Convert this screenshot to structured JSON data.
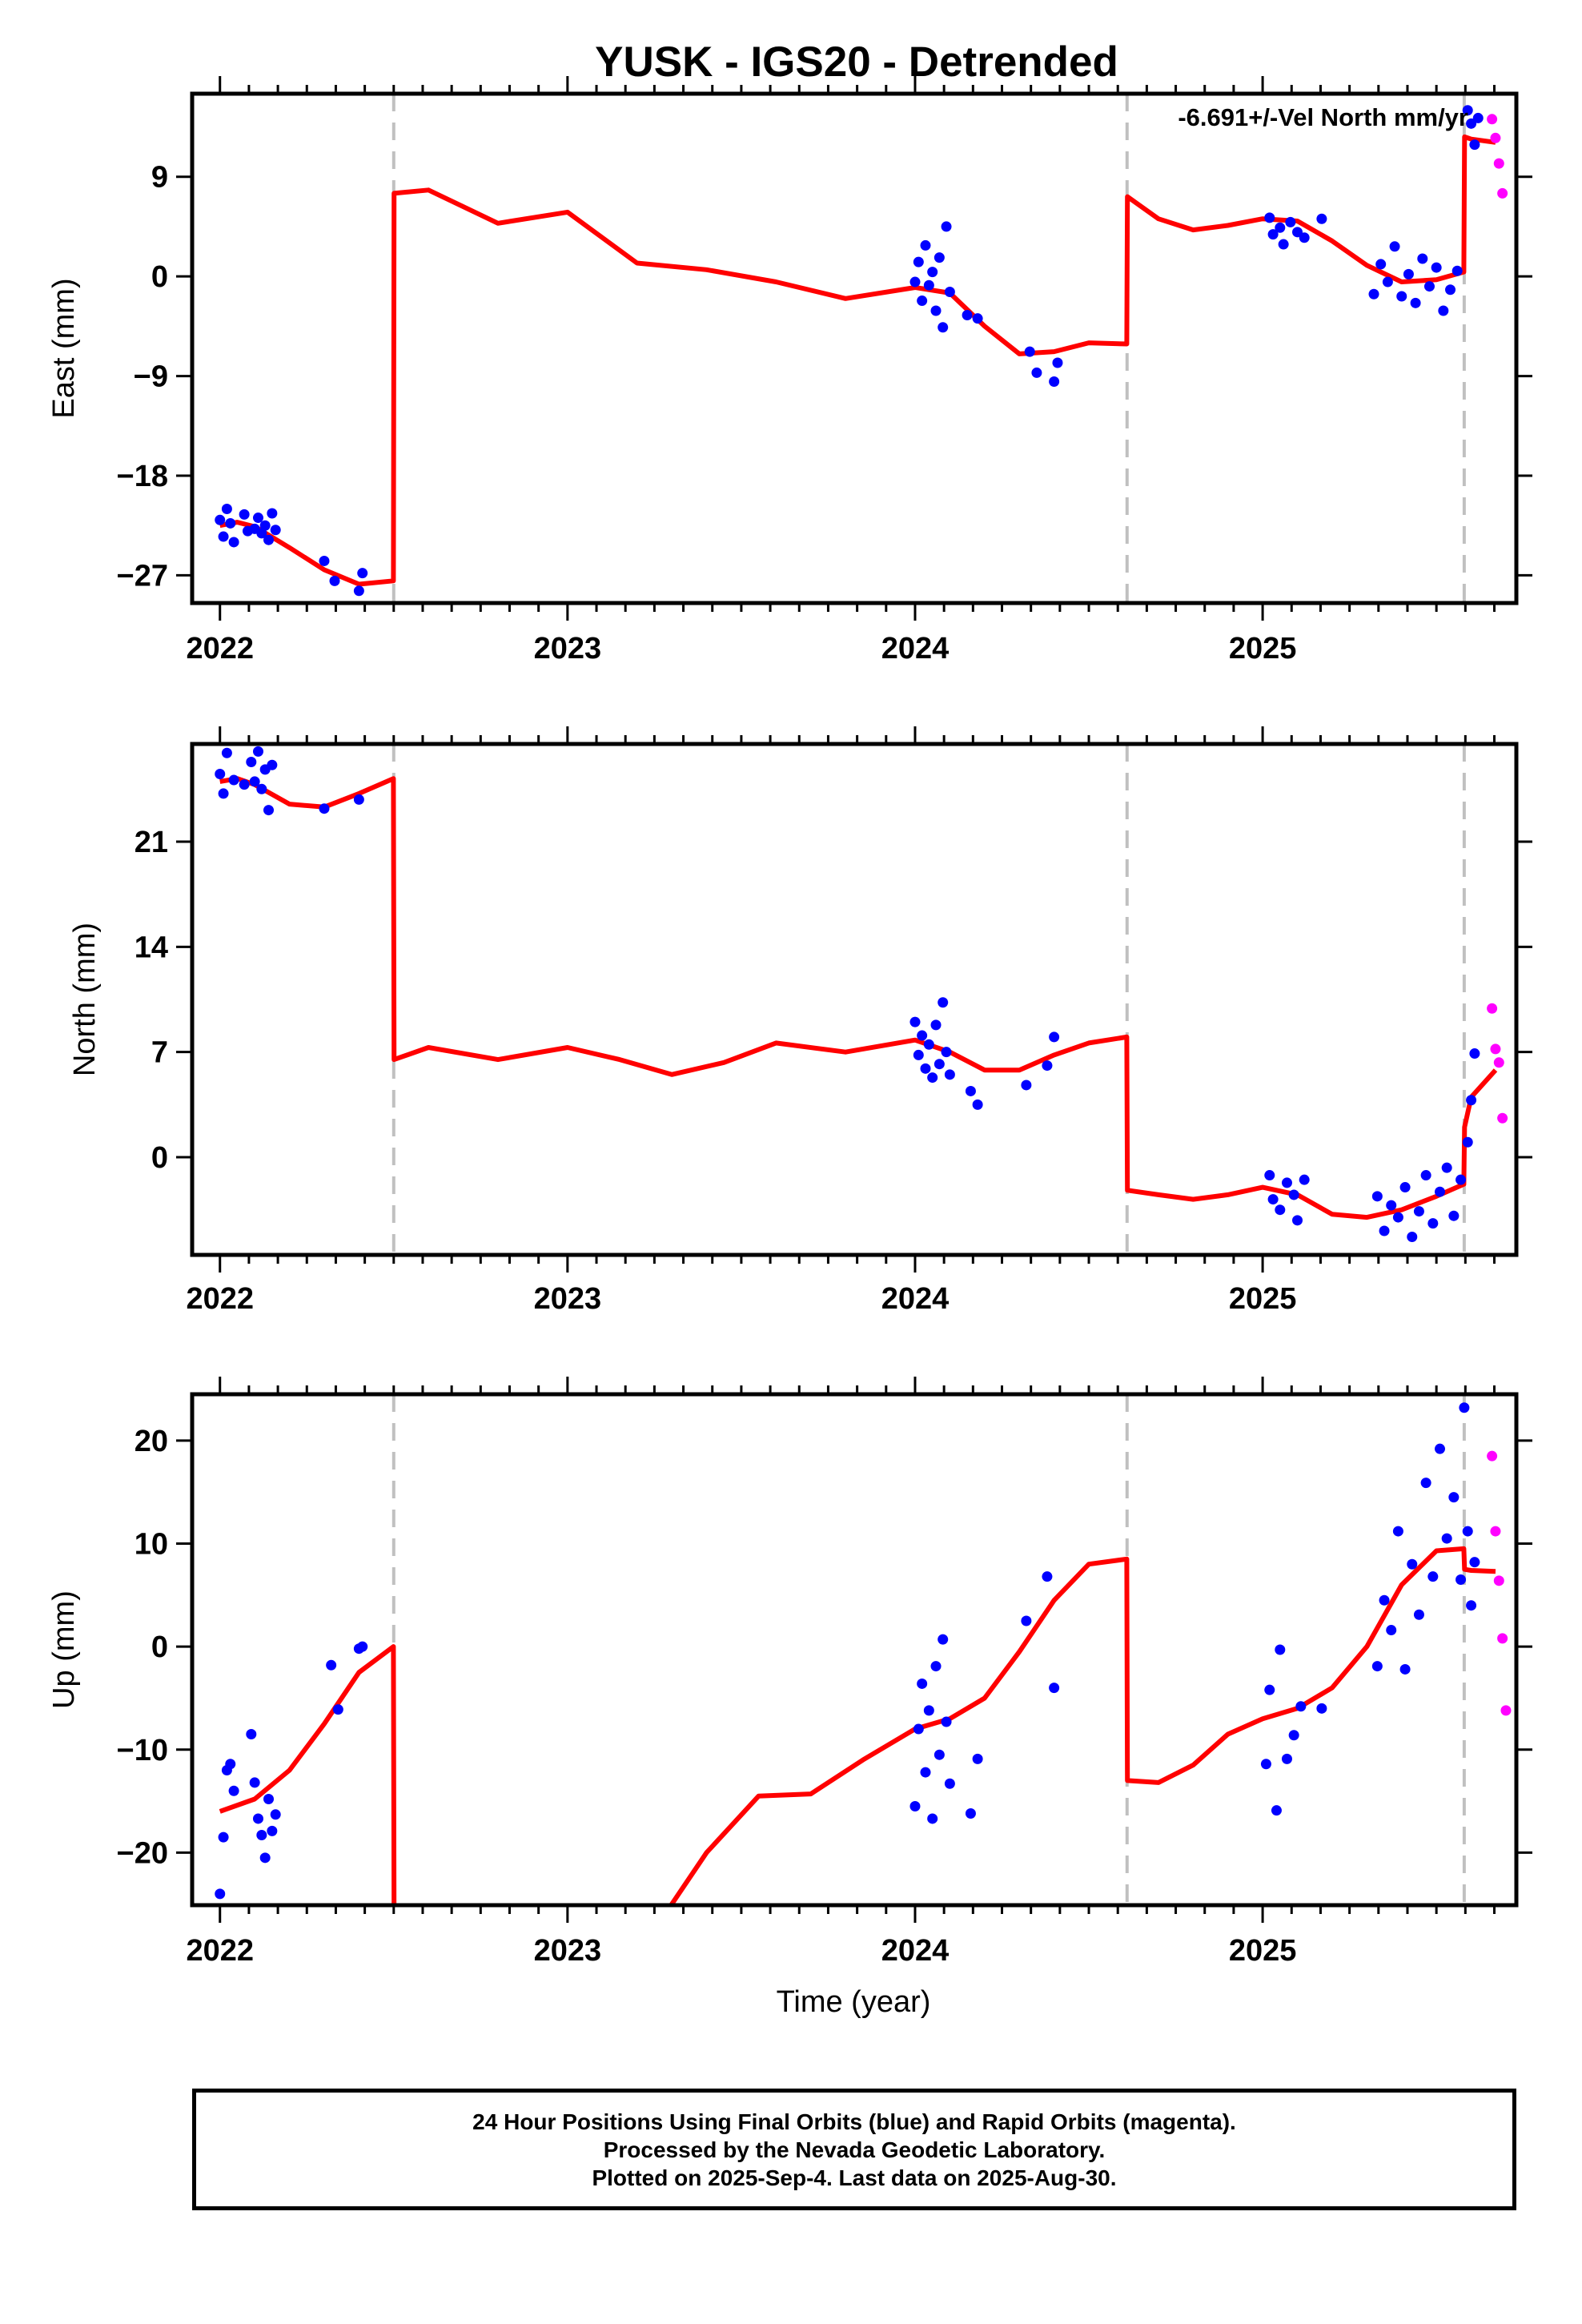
{
  "title": "YUSK - IGS20 - Detrended",
  "xlabel": "Time (year)",
  "colors": {
    "final_orbits": "#0000ff",
    "rapid_orbits": "#ff00ff",
    "model": "#ff0000",
    "steps": "#c0c0c0"
  },
  "footer": {
    "line1": "24 Hour Positions Using Final Orbits (blue) and Rapid Orbits (magenta).",
    "line2": "Processed by the Nevada Geodetic Laboratory.",
    "line3": "Plotted on 2025-Sep-4. Last data on 2025-Aug-30."
  },
  "chart_data": [
    {
      "type": "scatter",
      "ylabel": "East (mm)",
      "annotation": "-6.691+/-Vel North mm/yr",
      "xlim": [
        2021.92,
        2025.73
      ],
      "ylim": [
        -29.5,
        16.5
      ],
      "x_ticks": [
        2022,
        2023,
        2024,
        2025
      ],
      "y_ticks": [
        -27,
        -18,
        -9,
        0,
        9
      ],
      "y_tick_labels": [
        "−27",
        "−18",
        "−9",
        "0",
        "9"
      ],
      "grid": false,
      "step_epochs": [
        2022.5,
        2024.61,
        2025.58
      ],
      "model": {
        "x": [
          2022.0,
          2022.05,
          2022.1,
          2022.2,
          2022.3,
          2022.4,
          2022.499,
          2022.501,
          2022.6,
          2022.8,
          2023.0,
          2023.2,
          2023.4,
          2023.6,
          2023.8,
          2024.0,
          2024.1,
          2024.2,
          2024.3,
          2024.4,
          2024.5,
          2024.609,
          2024.611,
          2024.7,
          2024.8,
          2024.9,
          2025.0,
          2025.1,
          2025.2,
          2025.3,
          2025.4,
          2025.5,
          2025.579,
          2025.581,
          2025.6,
          2025.67
        ],
        "y": [
          -22.5,
          -22.2,
          -22.6,
          -24.5,
          -26.5,
          -27.8,
          -27.5,
          7.5,
          7.8,
          4.8,
          5.8,
          1.2,
          0.6,
          -0.5,
          -2.0,
          -1.0,
          -1.5,
          -4.5,
          -7.0,
          -6.8,
          -6.0,
          -6.1,
          7.2,
          5.2,
          4.2,
          4.6,
          5.2,
          5.0,
          3.2,
          1.0,
          -0.5,
          -0.3,
          0.4,
          12.6,
          12.4,
          12.1
        ]
      },
      "final_points": {
        "x": [
          2022.0,
          2022.01,
          2022.02,
          2022.03,
          2022.04,
          2022.07,
          2022.08,
          2022.1,
          2022.11,
          2022.12,
          2022.13,
          2022.14,
          2022.15,
          2022.16,
          2022.3,
          2022.33,
          2022.4,
          2022.41,
          2024.0,
          2024.01,
          2024.02,
          2024.03,
          2024.04,
          2024.05,
          2024.06,
          2024.07,
          2024.08,
          2024.09,
          2024.1,
          2024.15,
          2024.18,
          2024.33,
          2024.35,
          2024.4,
          2024.41,
          2025.02,
          2025.03,
          2025.05,
          2025.06,
          2025.08,
          2025.1,
          2025.12,
          2025.17,
          2025.32,
          2025.34,
          2025.36,
          2025.38,
          2025.4,
          2025.42,
          2025.44,
          2025.46,
          2025.48,
          2025.5,
          2025.52,
          2025.54,
          2025.56,
          2025.59,
          2025.6,
          2025.61,
          2025.62
        ],
        "y": [
          -22.0,
          -23.5,
          -21.0,
          -22.3,
          -24.0,
          -21.5,
          -23.0,
          -22.8,
          -21.8,
          -23.2,
          -22.5,
          -23.8,
          -21.4,
          -22.9,
          -25.7,
          -27.5,
          -28.4,
          -26.8,
          -0.5,
          1.3,
          -2.2,
          2.8,
          -0.8,
          0.4,
          -3.1,
          1.7,
          -4.6,
          4.5,
          -1.4,
          -3.5,
          -3.8,
          -6.8,
          -8.7,
          -9.5,
          -7.8,
          5.3,
          3.8,
          4.4,
          2.9,
          4.9,
          4.0,
          3.5,
          5.2,
          -1.6,
          1.1,
          -0.5,
          2.7,
          -1.8,
          0.2,
          -2.4,
          1.6,
          -0.9,
          0.8,
          -3.1,
          -1.2,
          0.5,
          15.0,
          13.8,
          11.9,
          14.3
        ]
      },
      "rapid_points": {
        "x": [
          2025.66,
          2025.67,
          2025.68,
          2025.69
        ],
        "y": [
          14.2,
          12.5,
          10.2,
          7.5
        ]
      }
    },
    {
      "type": "scatter",
      "ylabel": "North (mm)",
      "xlim": [
        2021.92,
        2025.73
      ],
      "ylim": [
        -6.5,
        27.5
      ],
      "x_ticks": [
        2022,
        2023,
        2024,
        2025
      ],
      "y_ticks": [
        0,
        7,
        14,
        21
      ],
      "y_tick_labels": [
        "0",
        "7",
        "14",
        "21"
      ],
      "grid": false,
      "step_epochs": [
        2022.5,
        2024.61,
        2025.58
      ],
      "model": {
        "x": [
          2022.0,
          2022.05,
          2022.1,
          2022.2,
          2022.3,
          2022.4,
          2022.499,
          2022.501,
          2022.6,
          2022.8,
          2023.0,
          2023.15,
          2023.3,
          2023.45,
          2023.6,
          2023.8,
          2024.0,
          2024.1,
          2024.2,
          2024.3,
          2024.4,
          2024.5,
          2024.609,
          2024.611,
          2024.7,
          2024.8,
          2024.9,
          2025.0,
          2025.1,
          2025.2,
          2025.3,
          2025.4,
          2025.5,
          2025.579,
          2025.581,
          2025.6,
          2025.67
        ],
        "y": [
          25.0,
          25.2,
          24.8,
          23.5,
          23.3,
          24.2,
          25.2,
          6.5,
          7.3,
          6.5,
          7.3,
          6.5,
          5.5,
          6.3,
          7.6,
          7.0,
          7.8,
          7.0,
          5.8,
          5.8,
          6.8,
          7.6,
          8.0,
          -2.2,
          -2.5,
          -2.8,
          -2.5,
          -2.0,
          -2.5,
          -3.8,
          -4.0,
          -3.5,
          -2.6,
          -1.8,
          2.0,
          4.0,
          5.8
        ]
      },
      "final_points": {
        "x": [
          2022.0,
          2022.01,
          2022.02,
          2022.04,
          2022.07,
          2022.09,
          2022.1,
          2022.11,
          2022.12,
          2022.13,
          2022.14,
          2022.15,
          2022.3,
          2022.4,
          2024.0,
          2024.01,
          2024.02,
          2024.03,
          2024.04,
          2024.05,
          2024.06,
          2024.07,
          2024.08,
          2024.09,
          2024.1,
          2024.16,
          2024.18,
          2024.32,
          2024.38,
          2024.4,
          2025.02,
          2025.03,
          2025.05,
          2025.07,
          2025.09,
          2025.1,
          2025.12,
          2025.33,
          2025.35,
          2025.37,
          2025.39,
          2025.41,
          2025.43,
          2025.45,
          2025.47,
          2025.49,
          2025.51,
          2025.53,
          2025.55,
          2025.57,
          2025.59,
          2025.6,
          2025.61
        ],
        "y": [
          25.5,
          24.2,
          26.9,
          25.1,
          24.8,
          26.3,
          25.0,
          27.0,
          24.5,
          25.8,
          23.1,
          26.1,
          23.2,
          23.8,
          9.0,
          6.8,
          8.1,
          5.9,
          7.5,
          5.3,
          8.8,
          6.2,
          10.3,
          7.0,
          5.5,
          4.4,
          3.5,
          4.8,
          6.1,
          8.0,
          -1.2,
          -2.8,
          -3.5,
          -1.7,
          -2.5,
          -4.2,
          -1.5,
          -2.6,
          -4.9,
          -3.2,
          -4.0,
          -2.0,
          -5.3,
          -3.6,
          -1.2,
          -4.4,
          -2.3,
          -0.7,
          -3.9,
          -1.5,
          1.0,
          3.8,
          6.9
        ]
      },
      "rapid_points": {
        "x": [
          2025.66,
          2025.67,
          2025.68,
          2025.69
        ],
        "y": [
          9.9,
          7.2,
          6.3,
          2.6
        ]
      }
    },
    {
      "type": "scatter",
      "ylabel": "Up (mm)",
      "xlabel": "Time (year)",
      "xlim": [
        2021.92,
        2025.73
      ],
      "ylim": [
        -25.1,
        24.5
      ],
      "x_ticks": [
        2022,
        2023,
        2024,
        2025
      ],
      "y_ticks": [
        -20,
        -10,
        0,
        10,
        20
      ],
      "y_tick_labels": [
        "−20",
        "−10",
        "0",
        "10",
        "20"
      ],
      "grid": false,
      "step_epochs": [
        2022.5,
        2024.61,
        2025.58
      ],
      "model": {
        "x": [
          2022.0,
          2022.1,
          2022.2,
          2022.3,
          2022.4,
          2022.499,
          2022.501,
          2022.6,
          2023.0,
          2023.28,
          2023.4,
          2023.55,
          2023.7,
          2023.85,
          2024.0,
          2024.1,
          2024.2,
          2024.3,
          2024.4,
          2024.5,
          2024.609,
          2024.611,
          2024.7,
          2024.8,
          2024.9,
          2025.0,
          2025.1,
          2025.2,
          2025.3,
          2025.4,
          2025.5,
          2025.579,
          2025.581,
          2025.6,
          2025.67
        ],
        "y": [
          -16.0,
          -14.8,
          -12.0,
          -7.5,
          -2.5,
          0.0,
          -26.0,
          -26.0,
          -26.0,
          -26.0,
          -20.0,
          -14.5,
          -14.3,
          -11.0,
          -8.0,
          -7.0,
          -5.0,
          -0.5,
          4.5,
          8.0,
          8.5,
          -13.0,
          -13.2,
          -11.5,
          -8.5,
          -7.0,
          -6.0,
          -4.0,
          0.0,
          6.0,
          9.3,
          9.5,
          7.5,
          7.4,
          7.3
        ]
      },
      "final_points": {
        "x": [
          2022.0,
          2022.01,
          2022.02,
          2022.03,
          2022.04,
          2022.09,
          2022.1,
          2022.11,
          2022.12,
          2022.13,
          2022.14,
          2022.15,
          2022.16,
          2022.32,
          2022.34,
          2022.4,
          2022.41,
          2024.0,
          2024.01,
          2024.02,
          2024.03,
          2024.04,
          2024.05,
          2024.06,
          2024.07,
          2024.08,
          2024.09,
          2024.1,
          2024.16,
          2024.18,
          2024.32,
          2024.38,
          2024.4,
          2025.01,
          2025.02,
          2025.04,
          2025.05,
          2025.07,
          2025.09,
          2025.11,
          2025.17,
          2025.33,
          2025.35,
          2025.37,
          2025.39,
          2025.41,
          2025.43,
          2025.45,
          2025.47,
          2025.49,
          2025.51,
          2025.53,
          2025.55,
          2025.57,
          2025.58,
          2025.59,
          2025.6,
          2025.61
        ],
        "y": [
          -24.0,
          -18.5,
          -12.0,
          -11.4,
          -14.0,
          -8.5,
          -13.2,
          -16.7,
          -18.3,
          -20.5,
          -14.8,
          -17.9,
          -16.3,
          -1.8,
          -6.1,
          -0.2,
          0.0,
          -15.5,
          -8.0,
          -3.6,
          -12.2,
          -6.2,
          -16.7,
          -1.9,
          -10.5,
          0.7,
          -7.3,
          -13.3,
          -16.2,
          -10.9,
          2.5,
          6.8,
          -4.0,
          -11.4,
          -4.2,
          -15.9,
          -0.3,
          -10.9,
          -8.6,
          -5.8,
          -6.0,
          -1.9,
          4.5,
          1.6,
          11.2,
          -2.2,
          8.0,
          3.1,
          15.9,
          6.8,
          19.2,
          10.5,
          14.5,
          6.5,
          23.2,
          11.2,
          4.0,
          8.2
        ]
      },
      "rapid_points": {
        "x": [
          2025.66,
          2025.67,
          2025.68,
          2025.69,
          2025.7
        ],
        "y": [
          18.5,
          11.2,
          6.4,
          0.8,
          -6.2
        ]
      }
    }
  ]
}
